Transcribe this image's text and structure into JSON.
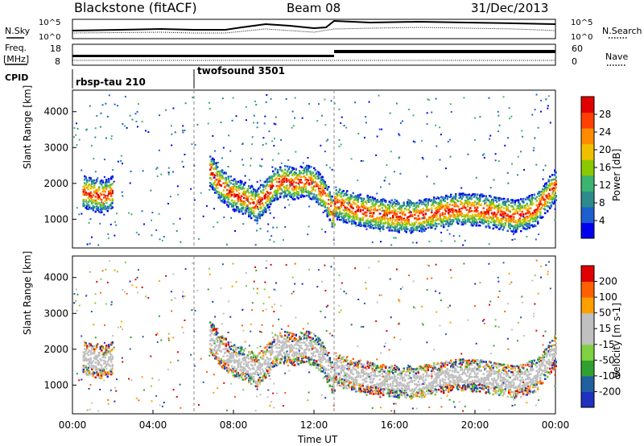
{
  "header": {
    "title_left": "Blackstone (fitACF)",
    "title_center": "Beam 08",
    "title_right": "31/Dec/2013"
  },
  "noise_panel": {
    "left_label": "N.Sky",
    "right_label": "N.Search",
    "ticks": [
      "10^5",
      "10^0"
    ]
  },
  "freq_panel": {
    "left_label_1": "Freq.",
    "left_label_2": "[MHz]",
    "right_label": "Nave",
    "left_ticks": [
      "18",
      "8"
    ],
    "right_ticks": [
      "60",
      "0"
    ]
  },
  "cpid_panel": {
    "label": "CPID",
    "segments": [
      {
        "name": "rbsp-tau 210",
        "start_hour": 0
      },
      {
        "name": "twofsound 3501",
        "start_hour": 6
      }
    ]
  },
  "colors": {
    "power": [
      "#0000f0",
      "#1e5fd0",
      "#2e8b8b",
      "#3cb371",
      "#8bc800",
      "#f0c000",
      "#ff8c00",
      "#ff4000",
      "#e00000"
    ],
    "velocity": [
      "#e00000",
      "#ff6000",
      "#ffa000",
      "#c0c0c0",
      "#c0c0c0",
      "#80d040",
      "#30a030",
      "#2060a0",
      "#2030c0"
    ]
  },
  "chart_data": [
    {
      "type": "heatmap",
      "name": "power-panel",
      "ylabel": "Slant Range [km]",
      "ylim": [
        200,
        4600
      ],
      "yticks": [
        "1000",
        "2000",
        "3000",
        "4000"
      ],
      "xlim": [
        0,
        24
      ],
      "colorbar_label": "Power [dB]",
      "colorbar_ticks": [
        "4",
        "8",
        "12",
        "16",
        "20",
        "24",
        "28"
      ],
      "colorbar_range": [
        0,
        32
      ],
      "series": [
        {
          "x": [
            0.5,
            1.0,
            1.5,
            2.0
          ],
          "y": [
            1800,
            1700,
            1650,
            1800
          ]
        },
        {
          "x": [
            6.8,
            7.3,
            8.0,
            8.6,
            9.1,
            9.6,
            10.0,
            10.5,
            11.0,
            11.5,
            12.0,
            12.5,
            13.0
          ],
          "y": [
            2400,
            2000,
            1700,
            1600,
            1400,
            1700,
            2000,
            2100,
            2000,
            2100,
            2000,
            1700,
            1100
          ]
        },
        {
          "x": [
            13.0,
            14.0,
            15.0,
            16.0,
            17.0,
            18.0,
            19.0,
            20.0,
            21.0,
            22.0,
            23.0,
            24.0
          ],
          "y": [
            1500,
            1300,
            1200,
            1100,
            1100,
            1200,
            1300,
            1300,
            1200,
            1100,
            1300,
            2000
          ]
        }
      ]
    },
    {
      "type": "heatmap",
      "name": "velocity-panel",
      "ylabel": "Slant Range [km]",
      "ylim": [
        200,
        4600
      ],
      "yticks": [
        "1000",
        "2000",
        "3000",
        "4000"
      ],
      "xlabel": "Time UT",
      "xticks": [
        "00:00",
        "04:00",
        "08:00",
        "12:00",
        "16:00",
        "20:00",
        "00:00"
      ],
      "xlim": [
        0,
        24
      ],
      "colorbar_label": "Velocity [m s-1]",
      "colorbar_ticks": [
        "200",
        "100",
        "50",
        "15",
        "-15",
        "-50",
        "-100",
        "-200"
      ]
    }
  ]
}
